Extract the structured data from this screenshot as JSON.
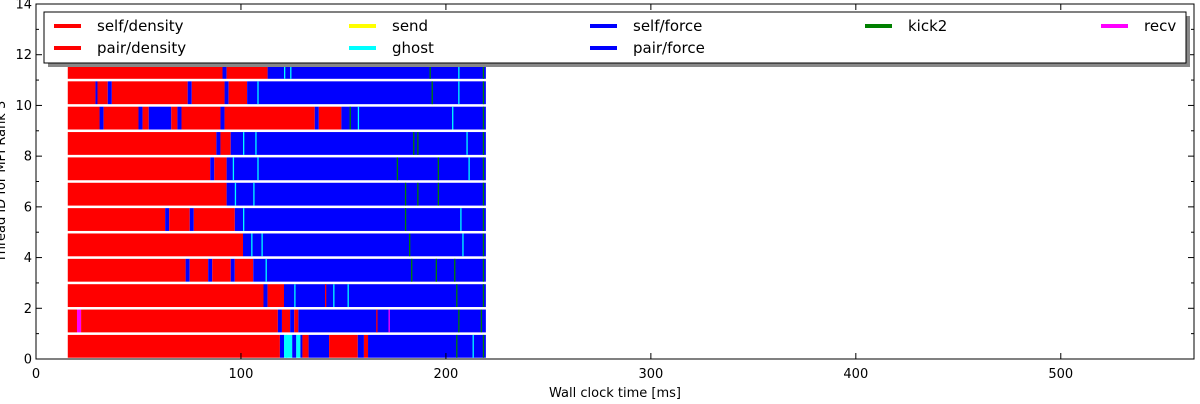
{
  "chart_data": {
    "type": "bar",
    "title": "",
    "xlabel": "Wall clock time [ms]",
    "ylabel": "Thread ID for MPI Rank 3",
    "xlim": [
      0,
      565
    ],
    "ylim": [
      0,
      14
    ],
    "xticks": [
      0,
      100,
      200,
      300,
      400,
      500
    ],
    "yticks": [
      0,
      2,
      4,
      6,
      8,
      10,
      12,
      14
    ],
    "grid": false,
    "legend_position": "top",
    "legend": [
      {
        "name": "self/density",
        "color": "#ff0000"
      },
      {
        "name": "pair/density",
        "color": "#ff0000"
      },
      {
        "name": "send",
        "color": "#ffff00"
      },
      {
        "name": "ghost",
        "color": "#00ffff"
      },
      {
        "name": "self/force",
        "color": "#0000ff"
      },
      {
        "name": "pair/force",
        "color": "#0000ff"
      },
      {
        "name": "kick2",
        "color": "#008000"
      },
      {
        "name": "recv",
        "color": "#ff00ff"
      }
    ],
    "colors": {
      "density": "#ff0000",
      "force": "#0000ff",
      "send": "#ffff00",
      "ghost": "#00ffff",
      "kick2": "#008000",
      "recv": "#ff00ff"
    },
    "threads": [
      {
        "id": 0,
        "start": 15.5,
        "end": 219.5,
        "segments": [
          {
            "t": "density",
            "s": 15.5,
            "e": 119
          },
          {
            "t": "force",
            "s": 119,
            "e": 121
          },
          {
            "t": "ghost",
            "s": 121,
            "e": 125
          },
          {
            "t": "force",
            "s": 125,
            "e": 127
          },
          {
            "t": "ghost",
            "s": 127,
            "e": 129
          },
          {
            "t": "force",
            "s": 129,
            "e": 130
          },
          {
            "t": "density",
            "s": 130,
            "e": 133
          },
          {
            "t": "force",
            "s": 133,
            "e": 143
          },
          {
            "t": "density",
            "s": 143,
            "e": 157
          },
          {
            "t": "force",
            "s": 157,
            "e": 160
          },
          {
            "t": "density",
            "s": 160,
            "e": 162
          },
          {
            "t": "force",
            "s": 162,
            "e": 219.5
          }
        ]
      },
      {
        "id": 1,
        "start": 15.5,
        "end": 219.5,
        "segments": [
          {
            "t": "density",
            "s": 15.5,
            "e": 20
          },
          {
            "t": "recv",
            "s": 20,
            "e": 22
          },
          {
            "t": "density",
            "s": 22,
            "e": 118
          },
          {
            "t": "force",
            "s": 118,
            "e": 120
          },
          {
            "t": "density",
            "s": 120,
            "e": 124
          },
          {
            "t": "force",
            "s": 124,
            "e": 126
          },
          {
            "t": "density",
            "s": 126,
            "e": 128
          },
          {
            "t": "force",
            "s": 128,
            "e": 219.5
          }
        ]
      },
      {
        "id": 2,
        "start": 15.5,
        "end": 219.5,
        "segments": [
          {
            "t": "density",
            "s": 15.5,
            "e": 111
          },
          {
            "t": "force",
            "s": 111,
            "e": 113
          },
          {
            "t": "density",
            "s": 113,
            "e": 121
          },
          {
            "t": "force",
            "s": 121,
            "e": 219.5
          }
        ]
      },
      {
        "id": 3,
        "start": 15.5,
        "end": 219.5,
        "segments": [
          {
            "t": "density",
            "s": 15.5,
            "e": 73
          },
          {
            "t": "force",
            "s": 73,
            "e": 75
          },
          {
            "t": "density",
            "s": 75,
            "e": 84
          },
          {
            "t": "force",
            "s": 84,
            "e": 86
          },
          {
            "t": "density",
            "s": 86,
            "e": 95
          },
          {
            "t": "force",
            "s": 95,
            "e": 97
          },
          {
            "t": "density",
            "s": 97,
            "e": 106
          },
          {
            "t": "force",
            "s": 106,
            "e": 219.5
          }
        ]
      },
      {
        "id": 4,
        "start": 15.5,
        "end": 219.5,
        "segments": [
          {
            "t": "density",
            "s": 15.5,
            "e": 101
          },
          {
            "t": "force",
            "s": 101,
            "e": 219.5
          }
        ]
      },
      {
        "id": 5,
        "start": 15.5,
        "end": 219.5,
        "segments": [
          {
            "t": "density",
            "s": 15.5,
            "e": 63
          },
          {
            "t": "force",
            "s": 63,
            "e": 65
          },
          {
            "t": "density",
            "s": 65,
            "e": 75
          },
          {
            "t": "force",
            "s": 75,
            "e": 77
          },
          {
            "t": "density",
            "s": 77,
            "e": 97
          },
          {
            "t": "force",
            "s": 97,
            "e": 219.5
          }
        ]
      },
      {
        "id": 6,
        "start": 15.5,
        "end": 219.5,
        "segments": [
          {
            "t": "density",
            "s": 15.5,
            "e": 93
          },
          {
            "t": "force",
            "s": 93,
            "e": 219.5
          }
        ]
      },
      {
        "id": 7,
        "start": 15.5,
        "end": 219.5,
        "segments": [
          {
            "t": "density",
            "s": 15.5,
            "e": 85
          },
          {
            "t": "force",
            "s": 85,
            "e": 87
          },
          {
            "t": "density",
            "s": 87,
            "e": 93
          },
          {
            "t": "force",
            "s": 93,
            "e": 219.5
          }
        ]
      },
      {
        "id": 8,
        "start": 15.5,
        "end": 219.5,
        "segments": [
          {
            "t": "density",
            "s": 15.5,
            "e": 88
          },
          {
            "t": "force",
            "s": 88,
            "e": 90
          },
          {
            "t": "density",
            "s": 90,
            "e": 95
          },
          {
            "t": "force",
            "s": 95,
            "e": 219.5
          }
        ]
      },
      {
        "id": 9,
        "start": 15.5,
        "end": 219.5,
        "segments": [
          {
            "t": "density",
            "s": 15.5,
            "e": 31
          },
          {
            "t": "force",
            "s": 31,
            "e": 33
          },
          {
            "t": "density",
            "s": 33,
            "e": 50
          },
          {
            "t": "force",
            "s": 50,
            "e": 52
          },
          {
            "t": "density",
            "s": 52,
            "e": 55
          },
          {
            "t": "force",
            "s": 55,
            "e": 66
          },
          {
            "t": "density",
            "s": 66,
            "e": 69
          },
          {
            "t": "force",
            "s": 69,
            "e": 71
          },
          {
            "t": "density",
            "s": 71,
            "e": 90
          },
          {
            "t": "force",
            "s": 90,
            "e": 92
          },
          {
            "t": "density",
            "s": 92,
            "e": 136
          },
          {
            "t": "force",
            "s": 136,
            "e": 138
          },
          {
            "t": "density",
            "s": 138,
            "e": 149
          },
          {
            "t": "force",
            "s": 149,
            "e": 219.5
          }
        ]
      },
      {
        "id": 10,
        "start": 15.5,
        "end": 219.5,
        "segments": [
          {
            "t": "density",
            "s": 15.5,
            "e": 29
          },
          {
            "t": "force",
            "s": 29,
            "e": 30
          },
          {
            "t": "density",
            "s": 30,
            "e": 35
          },
          {
            "t": "force",
            "s": 35,
            "e": 37
          },
          {
            "t": "density",
            "s": 37,
            "e": 74
          },
          {
            "t": "force",
            "s": 74,
            "e": 76
          },
          {
            "t": "density",
            "s": 76,
            "e": 92
          },
          {
            "t": "force",
            "s": 92,
            "e": 94
          },
          {
            "t": "density",
            "s": 94,
            "e": 103
          },
          {
            "t": "force",
            "s": 103,
            "e": 219.5
          }
        ]
      },
      {
        "id": 11,
        "start": 15.5,
        "end": 219.5,
        "segments": [
          {
            "t": "density",
            "s": 15.5,
            "e": 91
          },
          {
            "t": "force",
            "s": 91,
            "e": 93
          },
          {
            "t": "density",
            "s": 93,
            "e": 113
          },
          {
            "t": "force",
            "s": 113,
            "e": 219.5
          }
        ]
      }
    ],
    "thin_marks": [
      {
        "row": 0,
        "x": 122,
        "t": "ghost"
      },
      {
        "row": 0,
        "x": 205,
        "t": "kick2"
      },
      {
        "row": 0,
        "x": 213,
        "t": "ghost"
      },
      {
        "row": 0,
        "x": 218,
        "t": "kick2"
      },
      {
        "row": 1,
        "x": 166,
        "t": "density"
      },
      {
        "row": 1,
        "x": 172,
        "t": "recv"
      },
      {
        "row": 1,
        "x": 206,
        "t": "kick2"
      },
      {
        "row": 1,
        "x": 217,
        "t": "kick2"
      },
      {
        "row": 2,
        "x": 126,
        "t": "ghost"
      },
      {
        "row": 2,
        "x": 141,
        "t": "density"
      },
      {
        "row": 2,
        "x": 145,
        "t": "ghost"
      },
      {
        "row": 2,
        "x": 152,
        "t": "ghost"
      },
      {
        "row": 2,
        "x": 205,
        "t": "kick2"
      },
      {
        "row": 2,
        "x": 218,
        "t": "kick2"
      },
      {
        "row": 3,
        "x": 112,
        "t": "ghost"
      },
      {
        "row": 3,
        "x": 183,
        "t": "kick2"
      },
      {
        "row": 3,
        "x": 195,
        "t": "kick2"
      },
      {
        "row": 3,
        "x": 204,
        "t": "kick2"
      },
      {
        "row": 3,
        "x": 218,
        "t": "kick2"
      },
      {
        "row": 4,
        "x": 105,
        "t": "ghost"
      },
      {
        "row": 4,
        "x": 110,
        "t": "ghost"
      },
      {
        "row": 4,
        "x": 182,
        "t": "kick2"
      },
      {
        "row": 4,
        "x": 208,
        "t": "ghost"
      },
      {
        "row": 4,
        "x": 218,
        "t": "kick2"
      },
      {
        "row": 5,
        "x": 101,
        "t": "ghost"
      },
      {
        "row": 5,
        "x": 180,
        "t": "kick2"
      },
      {
        "row": 5,
        "x": 207,
        "t": "ghost"
      },
      {
        "row": 5,
        "x": 218,
        "t": "kick2"
      },
      {
        "row": 6,
        "x": 97,
        "t": "ghost"
      },
      {
        "row": 6,
        "x": 106,
        "t": "ghost"
      },
      {
        "row": 6,
        "x": 180,
        "t": "kick2"
      },
      {
        "row": 6,
        "x": 186,
        "t": "kick2"
      },
      {
        "row": 6,
        "x": 196,
        "t": "kick2"
      },
      {
        "row": 6,
        "x": 218,
        "t": "kick2"
      },
      {
        "row": 7,
        "x": 96,
        "t": "ghost"
      },
      {
        "row": 7,
        "x": 108,
        "t": "ghost"
      },
      {
        "row": 7,
        "x": 176,
        "t": "kick2"
      },
      {
        "row": 7,
        "x": 196,
        "t": "kick2"
      },
      {
        "row": 7,
        "x": 211,
        "t": "ghost"
      },
      {
        "row": 7,
        "x": 218,
        "t": "kick2"
      },
      {
        "row": 8,
        "x": 101,
        "t": "ghost"
      },
      {
        "row": 8,
        "x": 107,
        "t": "ghost"
      },
      {
        "row": 8,
        "x": 184,
        "t": "kick2"
      },
      {
        "row": 8,
        "x": 186,
        "t": "kick2"
      },
      {
        "row": 8,
        "x": 210,
        "t": "ghost"
      },
      {
        "row": 8,
        "x": 218,
        "t": "kick2"
      },
      {
        "row": 9,
        "x": 153,
        "t": "kick2"
      },
      {
        "row": 9,
        "x": 157,
        "t": "ghost"
      },
      {
        "row": 9,
        "x": 203,
        "t": "ghost"
      },
      {
        "row": 9,
        "x": 218,
        "t": "kick2"
      },
      {
        "row": 10,
        "x": 108,
        "t": "ghost"
      },
      {
        "row": 10,
        "x": 193,
        "t": "kick2"
      },
      {
        "row": 10,
        "x": 206,
        "t": "ghost"
      },
      {
        "row": 10,
        "x": 218,
        "t": "kick2"
      },
      {
        "row": 11,
        "x": 121,
        "t": "ghost"
      },
      {
        "row": 11,
        "x": 124,
        "t": "ghost"
      },
      {
        "row": 11,
        "x": 192,
        "t": "kick2"
      },
      {
        "row": 11,
        "x": 206,
        "t": "ghost"
      },
      {
        "row": 11,
        "x": 218,
        "t": "kick2"
      }
    ]
  }
}
